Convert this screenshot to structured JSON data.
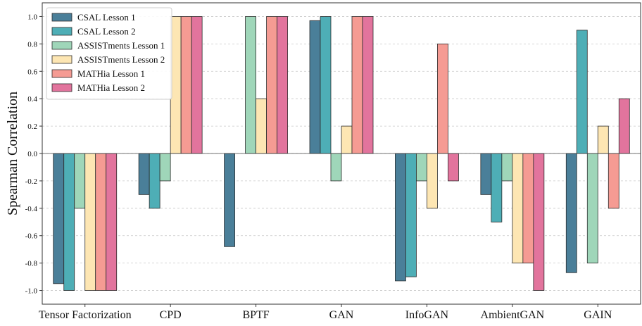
{
  "chart_data": {
    "type": "bar",
    "title": "",
    "xlabel": "",
    "ylabel": "Spearman Correlation",
    "ylim": [
      -1.1,
      1.1
    ],
    "yticks": [
      "-1.0",
      "-0.8",
      "-0.6",
      "-0.4",
      "-0.2",
      "0.0",
      "0.2",
      "0.4",
      "0.6",
      "0.8",
      "1.0"
    ],
    "ytick_values": [
      -1.0,
      -0.8,
      -0.6,
      -0.4,
      -0.2,
      0.0,
      0.2,
      0.4,
      0.6,
      0.8,
      1.0
    ],
    "grid": "horizontal dashed",
    "legend_position": "top-left",
    "categories": [
      "Tensor Factorization",
      "CPD",
      "BPTF",
      "GAN",
      "InfoGAN",
      "AmbientGAN",
      "GAIN"
    ],
    "series": [
      {
        "name": "CSAL Lesson 1",
        "color": "#4a7f99",
        "values": [
          -0.95,
          -0.3,
          -0.68,
          0.97,
          -0.93,
          -0.3,
          -0.87
        ]
      },
      {
        "name": "CSAL Lesson 2",
        "color": "#4eaeb6",
        "values": [
          -1.0,
          -0.4,
          0.0,
          1.0,
          -0.9,
          -0.5,
          0.9
        ]
      },
      {
        "name": "ASSISTments Lesson 1",
        "color": "#9fd6b9",
        "values": [
          -0.4,
          -0.2,
          1.0,
          -0.2,
          -0.2,
          -0.2,
          -0.8
        ]
      },
      {
        "name": "ASSISTments Lesson 2",
        "color": "#fde6b3",
        "values": [
          -1.0,
          1.0,
          0.4,
          0.2,
          -0.4,
          -0.8,
          0.2
        ]
      },
      {
        "name": "MATHia Lesson 1",
        "color": "#f59b93",
        "values": [
          -1.0,
          1.0,
          1.0,
          1.0,
          0.8,
          -0.8,
          -0.4
        ]
      },
      {
        "name": "MATHia Lesson 2",
        "color": "#e2749d",
        "values": [
          -1.0,
          1.0,
          1.0,
          1.0,
          -0.2,
          -1.0,
          0.4
        ]
      }
    ]
  }
}
